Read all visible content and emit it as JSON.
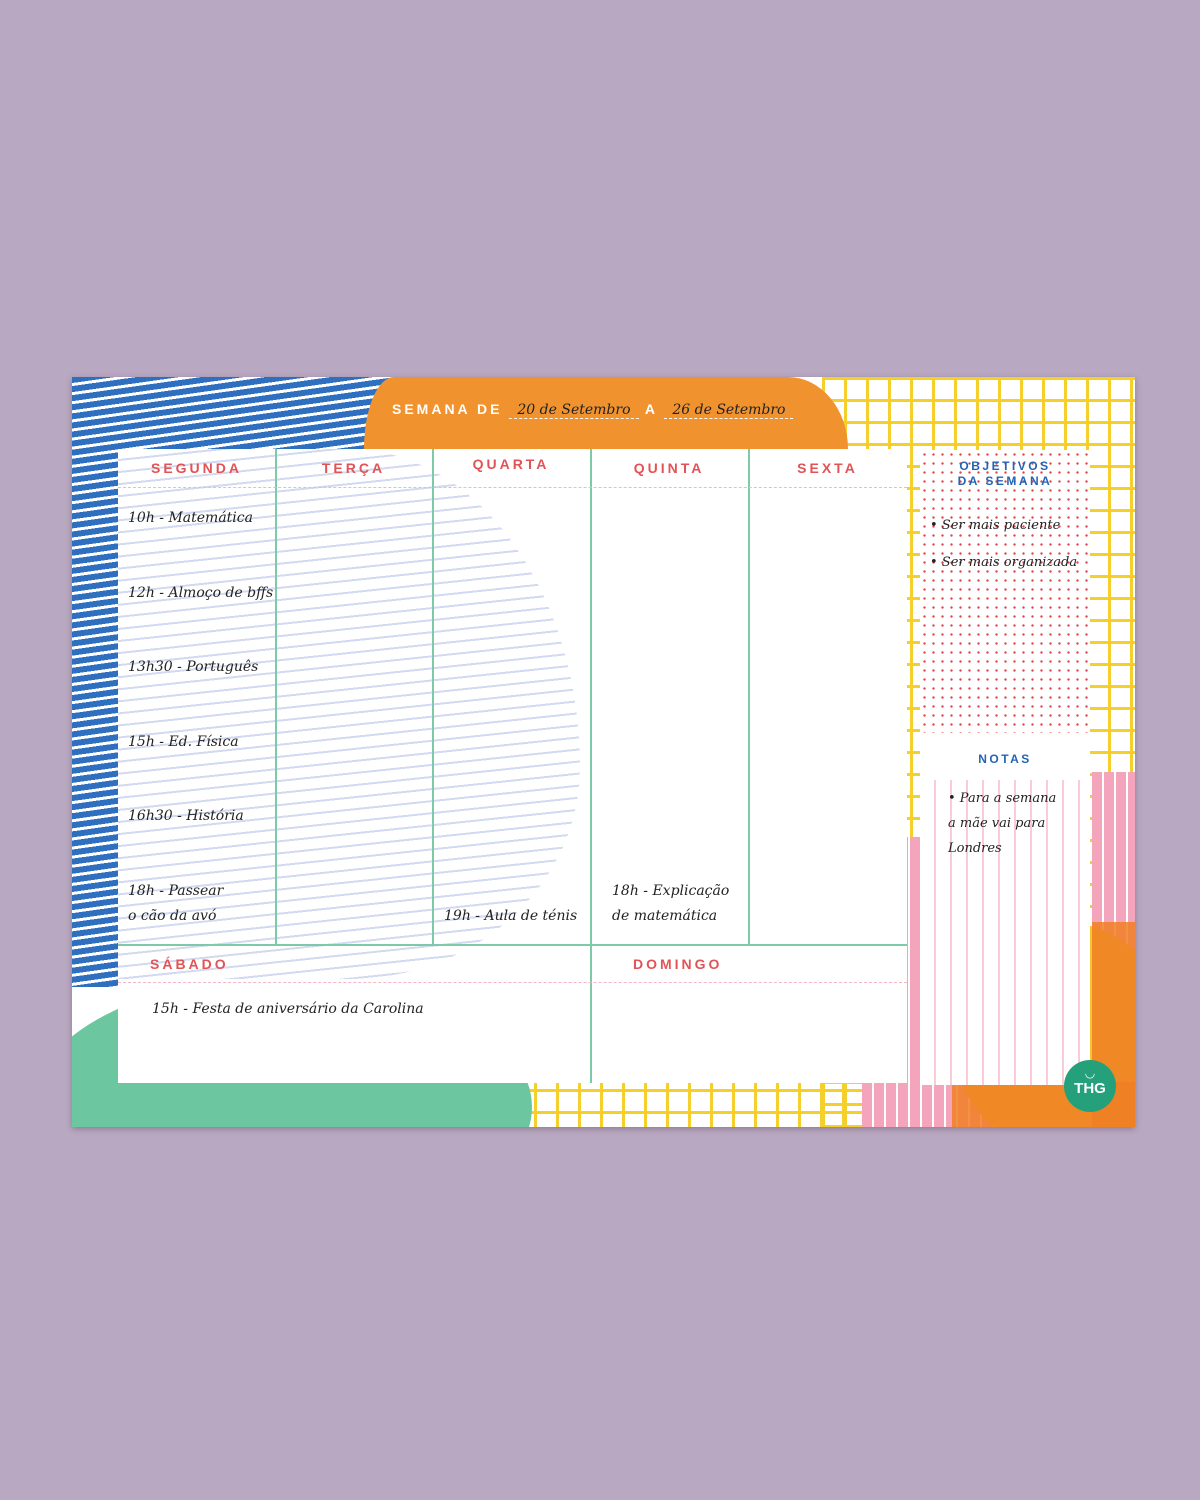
{
  "header": {
    "week_label": "SEMANA DE",
    "start_date": "20 de Setembro",
    "separator": "A",
    "end_date": "26 de Setembro"
  },
  "days": [
    {
      "label": "SEGUNDA",
      "entries": [
        "10h - Matemática",
        "12h - Almoço de bffs",
        "13h30 - Português",
        "15h - Ed. Física",
        "16h30 - História",
        "18h - Passear",
        "o cão da avó"
      ]
    },
    {
      "label": "TERÇA",
      "entries": []
    },
    {
      "label": "QUARTA",
      "entries": [
        "19h - Aula de ténis"
      ]
    },
    {
      "label": "QUINTA",
      "entries": [
        "18h - Explicação",
        "de matemática"
      ]
    },
    {
      "label": "SEXTA",
      "entries": []
    }
  ],
  "weekend": [
    {
      "label": "SÁBADO",
      "entries": [
        "15h - Festa de aniversário da Carolina"
      ]
    },
    {
      "label": "DOMINGO",
      "entries": []
    }
  ],
  "goals": {
    "title_line1": "OBJETIVOS",
    "title_line2": "DA SEMANA",
    "items": [
      "• Ser mais paciente",
      "• Ser mais organizada"
    ]
  },
  "notes": {
    "title": "NOTAS",
    "lines": [
      "• Para a semana",
      "a mãe vai para",
      "Londres"
    ]
  },
  "logo": {
    "text": "THG",
    "color": "#24a07a"
  },
  "colors": {
    "background": "#b9a8c1",
    "orange": "#f0932f",
    "blue": "#2f6fc0",
    "yellow": "#f5cf2c",
    "green": "#6cc69f",
    "pink": "#f4a5bb",
    "red_text": "#e25356",
    "blue_text": "#2464b4"
  }
}
